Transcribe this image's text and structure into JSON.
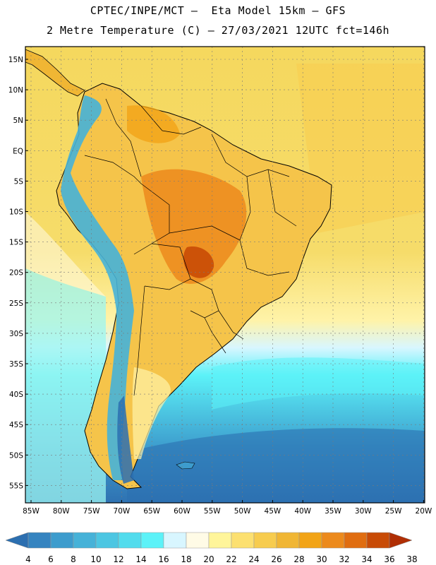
{
  "header": {
    "line1": "CPTEC/INPE/MCT –  Eta Model 15km – GFS",
    "line2": "2 Metre Temperature (C) – 27/03/2021 12UTC fct=146h"
  },
  "axes": {
    "lat_labels": [
      "15N",
      "10N",
      "5N",
      "EQ",
      "5S",
      "10S",
      "15S",
      "20S",
      "25S",
      "30S",
      "35S",
      "40S",
      "45S",
      "50S",
      "55S"
    ],
    "lon_labels": [
      "85W",
      "80W",
      "75W",
      "70W",
      "65W",
      "60W",
      "55W",
      "50W",
      "45W",
      "40W",
      "35W",
      "30W",
      "25W",
      "20W"
    ]
  },
  "legend": {
    "colors": [
      "#2c6fb0",
      "#3584c0",
      "#3d9ccd",
      "#46b2d8",
      "#4cc6e2",
      "#52dced",
      "#5cf2f8",
      "#d8f6ff",
      "#fffbe6",
      "#fff59a",
      "#fce070",
      "#f7cc4e",
      "#f0b634",
      "#f2a416",
      "#ec8a1c",
      "#e06d10",
      "#c84b06",
      "#b02e04"
    ],
    "labels": [
      "4",
      "6",
      "8",
      "10",
      "12",
      "14",
      "16",
      "18",
      "20",
      "22",
      "24",
      "26",
      "28",
      "30",
      "32",
      "34",
      "36",
      "38"
    ]
  }
}
